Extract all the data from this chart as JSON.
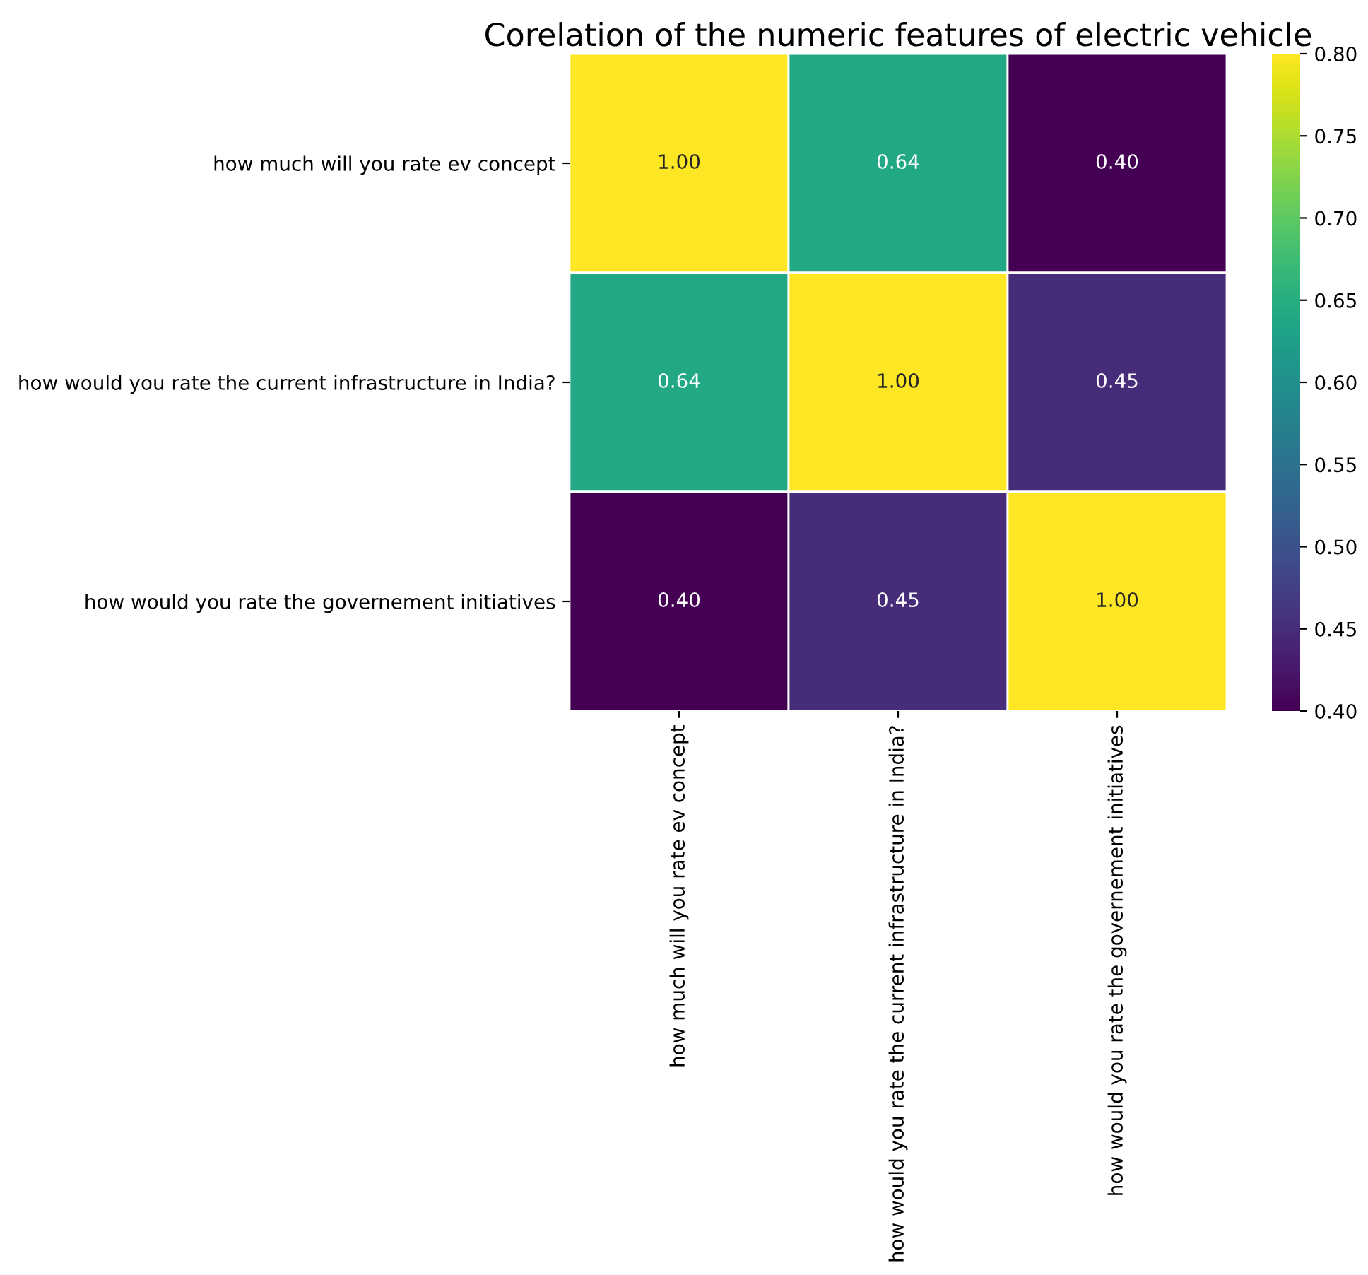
{
  "chart_data": {
    "type": "heatmap",
    "title": "Corelation of the numeric features of electric vehicle",
    "categories": [
      "how much will you rate ev concept",
      "how would you rate the current infrastructure in India?",
      "how would you rate the governement initiatives"
    ],
    "y_categories": [
      "how much will you rate ev concept",
      "how would you rate the current infrastructure in India?",
      "how would you rate the governement initiatives"
    ],
    "cells": [
      [
        1.0,
        0.64,
        0.4
      ],
      [
        0.64,
        1.0,
        0.45
      ],
      [
        0.4,
        0.45,
        1.0
      ]
    ],
    "cell_labels": [
      [
        "1.00",
        "0.64",
        "0.40"
      ],
      [
        "0.64",
        "1.00",
        "0.45"
      ],
      [
        "0.40",
        "0.45",
        "1.00"
      ]
    ],
    "clim": [
      0.4,
      0.8
    ],
    "cticks": [
      {
        "value": 0.4,
        "label": "0.40"
      },
      {
        "value": 0.45,
        "label": "0.45"
      },
      {
        "value": 0.5,
        "label": "0.50"
      },
      {
        "value": 0.55,
        "label": "0.55"
      },
      {
        "value": 0.6,
        "label": "0.60"
      },
      {
        "value": 0.65,
        "label": "0.65"
      },
      {
        "value": 0.7,
        "label": "0.70"
      },
      {
        "value": 0.75,
        "label": "0.75"
      },
      {
        "value": 0.8,
        "label": "0.80"
      }
    ]
  }
}
